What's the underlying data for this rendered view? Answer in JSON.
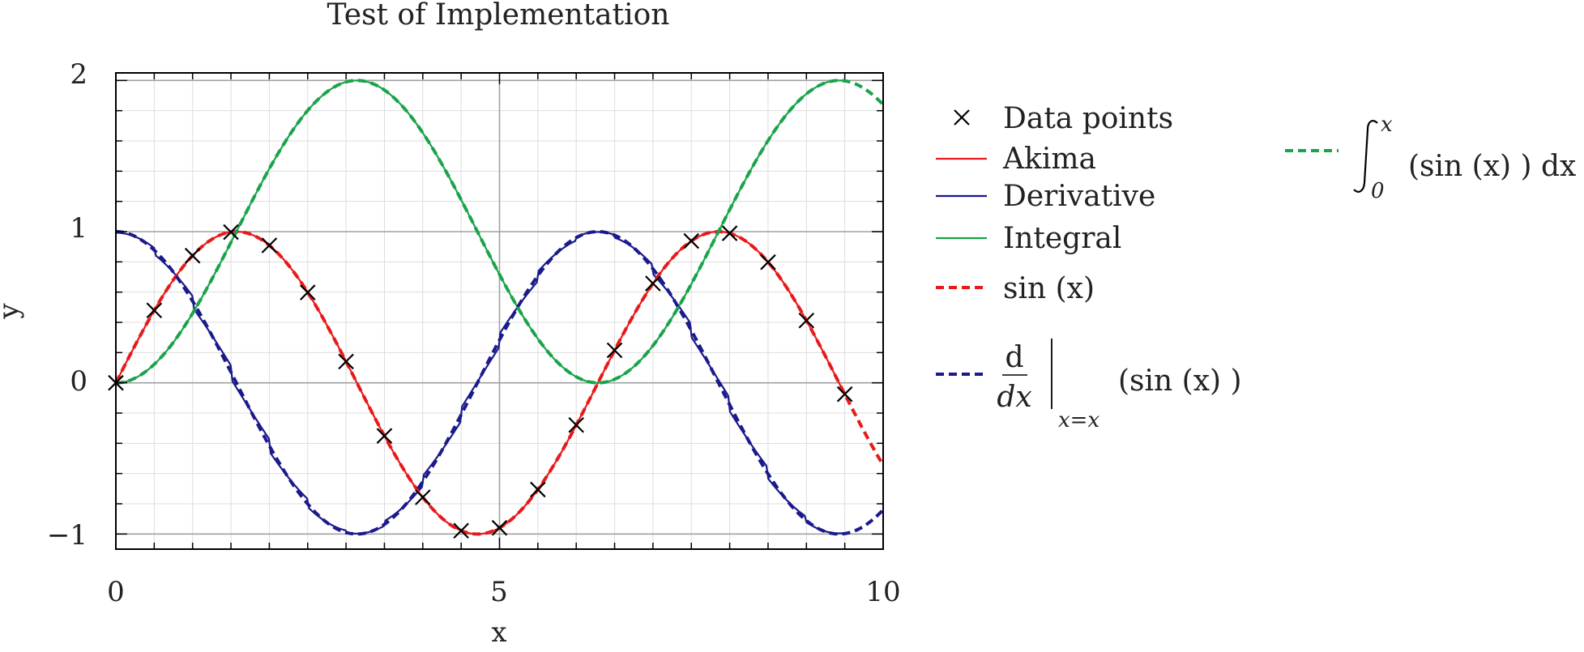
{
  "chart_data": {
    "type": "line",
    "title": "Test of Implementation",
    "xlabel": "x",
    "ylabel": "y",
    "xlim": [
      0,
      10
    ],
    "ylim": [
      -1.1,
      2.05
    ],
    "x_ticks": [
      0,
      5,
      10
    ],
    "x_tick_labels": [
      "0",
      "5",
      "10"
    ],
    "y_ticks": [
      -1,
      0,
      1,
      2
    ],
    "y_tick_labels": [
      "−1",
      "0",
      "1",
      "2"
    ],
    "grid": true,
    "legend_position": "right-outside",
    "data_points": {
      "name": "Data points",
      "marker": "x",
      "x": [
        0,
        0.5,
        1,
        1.5,
        2,
        2.5,
        3,
        3.5,
        4,
        4.5,
        5,
        5.5,
        6,
        6.5,
        7,
        7.5,
        8,
        8.5,
        9,
        9.5
      ],
      "y": [
        0,
        0.479,
        0.841,
        0.997,
        0.909,
        0.598,
        0.141,
        -0.351,
        -0.757,
        -0.978,
        -0.959,
        -0.706,
        -0.279,
        0.215,
        0.657,
        0.938,
        0.989,
        0.798,
        0.412,
        -0.075
      ]
    },
    "series": [
      {
        "name": "Akima",
        "color": "#e8191a",
        "style": "solid",
        "function": "sin",
        "x_range": [
          0,
          9.5
        ]
      },
      {
        "name": "Derivative",
        "color": "#1a1a8c",
        "style": "solid",
        "function": "cos_piecewise",
        "x_range": [
          0,
          9.5
        ]
      },
      {
        "name": "Integral",
        "color": "#1aa34a",
        "style": "solid",
        "function": "one_minus_cos",
        "x_range": [
          0,
          9.5
        ]
      },
      {
        "name": "sin (x)",
        "color": "#e8191a",
        "style": "dashed",
        "function": "sin",
        "x_range": [
          0,
          10
        ]
      },
      {
        "name": "d/dx|x=x (sin (x) )",
        "color": "#1a1a8c",
        "style": "dashed",
        "function": "cos",
        "x_range": [
          0,
          10
        ]
      },
      {
        "name": "∫0^x (sin (x) ) dx",
        "color": "#1aa34a",
        "style": "dashed",
        "function": "one_minus_cos",
        "x_range": [
          0,
          10
        ]
      }
    ]
  },
  "legend": {
    "data_points": "Data points",
    "akima": "Akima",
    "derivative": "Derivative",
    "integral": "Integral",
    "sin_label": "sin (x)",
    "deriv_num": "d",
    "deriv_den": "dx",
    "deriv_sub": "x=x",
    "deriv_arg": "(sin (x) )",
    "integral_upper": "x",
    "integral_lower": "0",
    "integral_expr": "(sin (x) ) dx"
  },
  "colors": {
    "red": "#e8191a",
    "blue": "#1a1a8c",
    "green": "#1aa34a"
  }
}
